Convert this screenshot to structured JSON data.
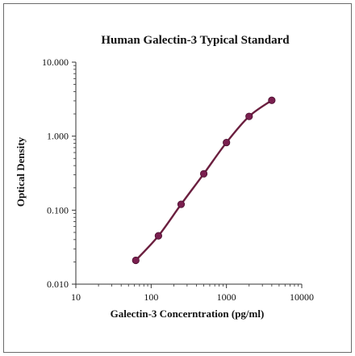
{
  "chart_data": {
    "type": "line",
    "title": "Human Galectin-3 Typical Standard",
    "xlabel": "Galectin-3 Concerntration (pg/ml)",
    "ylabel": "Optical Density",
    "x_scale": "log",
    "y_scale": "log",
    "xlim": [
      10,
      10000
    ],
    "ylim": [
      0.01,
      10
    ],
    "x_ticks": [
      "10",
      "100",
      "1000",
      "10000"
    ],
    "y_ticks": [
      "0.010",
      "0.100",
      "1.000",
      "10.000"
    ],
    "grid": false,
    "legend": "none",
    "series": [
      {
        "x": [
          62.5,
          125,
          250,
          500,
          1000,
          2000,
          4000
        ],
        "y": [
          0.021,
          0.045,
          0.12,
          0.31,
          0.82,
          1.85,
          3.05
        ]
      }
    ],
    "colors": {
      "line": "#6b1f3f",
      "marker": "#7a1f4f",
      "axis": "#333333"
    }
  }
}
